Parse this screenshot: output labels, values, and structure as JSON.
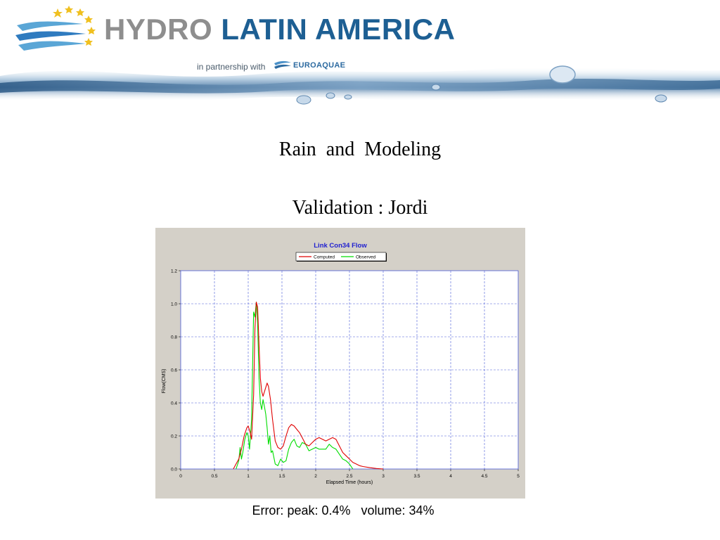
{
  "banner": {
    "brand_part1": "HYDRO",
    "brand_part2": "LATIN AMERICA",
    "partnership": "in partnership with",
    "partner_name": "EUROAQUAE"
  },
  "slide": {
    "title": "Rain  and  Modeling",
    "subtitle": "Validation : Jordi",
    "caption": "Error: peak: 0.4%   volume: 34%"
  },
  "colors": {
    "brand_blue": "#1d5f93",
    "brand_gray": "#8e8e8e",
    "chart_bg": "#d4d0c8",
    "computed": "#e00000",
    "observed": "#00dd00",
    "grid": "#4a5ad8"
  },
  "chart_data": {
    "type": "line",
    "title": "Link Con34 Flow",
    "xlabel": "Elapsed Time (hours)",
    "ylabel": "Flow(CMS)",
    "xlim": [
      0,
      5
    ],
    "ylim": [
      0,
      1.2
    ],
    "xticks": [
      "0",
      "0.5",
      "1",
      "1.5",
      "2",
      "2.5",
      "3",
      "3.5",
      "4",
      "4.5",
      "5"
    ],
    "yticks": [
      "0.0",
      "0.2",
      "0.4",
      "0.6",
      "0.8",
      "1.0",
      "1.2"
    ],
    "grid": true,
    "legend_position": "top-center",
    "series": [
      {
        "name": "Computed",
        "color": "#e00000",
        "x": [
          0.78,
          0.82,
          0.86,
          0.9,
          0.94,
          0.98,
          1.0,
          1.03,
          1.05,
          1.08,
          1.1,
          1.12,
          1.14,
          1.16,
          1.18,
          1.2,
          1.22,
          1.25,
          1.28,
          1.3,
          1.33,
          1.36,
          1.4,
          1.44,
          1.48,
          1.52,
          1.56,
          1.6,
          1.64,
          1.68,
          1.72,
          1.76,
          1.8,
          1.85,
          1.9,
          1.95,
          2.0,
          2.05,
          2.1,
          2.15,
          2.2,
          2.25,
          2.3,
          2.35,
          2.4,
          2.45,
          2.5,
          2.55,
          2.6,
          2.65,
          2.7,
          2.8,
          2.9,
          3.0
        ],
        "y": [
          0.0,
          0.03,
          0.06,
          0.12,
          0.2,
          0.25,
          0.26,
          0.22,
          0.18,
          0.45,
          0.85,
          1.01,
          0.98,
          0.75,
          0.55,
          0.47,
          0.44,
          0.48,
          0.52,
          0.5,
          0.42,
          0.3,
          0.17,
          0.13,
          0.12,
          0.14,
          0.2,
          0.25,
          0.27,
          0.26,
          0.24,
          0.22,
          0.19,
          0.15,
          0.14,
          0.16,
          0.18,
          0.19,
          0.18,
          0.17,
          0.18,
          0.19,
          0.18,
          0.14,
          0.1,
          0.08,
          0.06,
          0.04,
          0.03,
          0.02,
          0.015,
          0.008,
          0.003,
          0.0
        ]
      },
      {
        "name": "Observed",
        "color": "#00dd00",
        "x": [
          0.82,
          0.86,
          0.88,
          0.9,
          0.92,
          0.95,
          0.98,
          1.0,
          1.02,
          1.05,
          1.08,
          1.1,
          1.12,
          1.14,
          1.16,
          1.18,
          1.2,
          1.22,
          1.24,
          1.26,
          1.28,
          1.3,
          1.32,
          1.34,
          1.36,
          1.4,
          1.44,
          1.48,
          1.52,
          1.56,
          1.6,
          1.64,
          1.68,
          1.72,
          1.76,
          1.8,
          1.85,
          1.9,
          1.95,
          2.0,
          2.05,
          2.1,
          2.15,
          2.2,
          2.25,
          2.3,
          2.35,
          2.4,
          2.45,
          2.5,
          2.55
        ],
        "y": [
          0.0,
          0.05,
          0.13,
          0.06,
          0.1,
          0.18,
          0.22,
          0.2,
          0.12,
          0.3,
          0.95,
          0.92,
          1.01,
          0.88,
          0.55,
          0.4,
          0.36,
          0.42,
          0.38,
          0.33,
          0.25,
          0.15,
          0.2,
          0.1,
          0.11,
          0.03,
          0.02,
          0.06,
          0.04,
          0.05,
          0.12,
          0.16,
          0.18,
          0.14,
          0.13,
          0.16,
          0.15,
          0.11,
          0.12,
          0.13,
          0.12,
          0.12,
          0.12,
          0.15,
          0.13,
          0.12,
          0.09,
          0.06,
          0.05,
          0.03,
          0.0
        ]
      }
    ]
  }
}
